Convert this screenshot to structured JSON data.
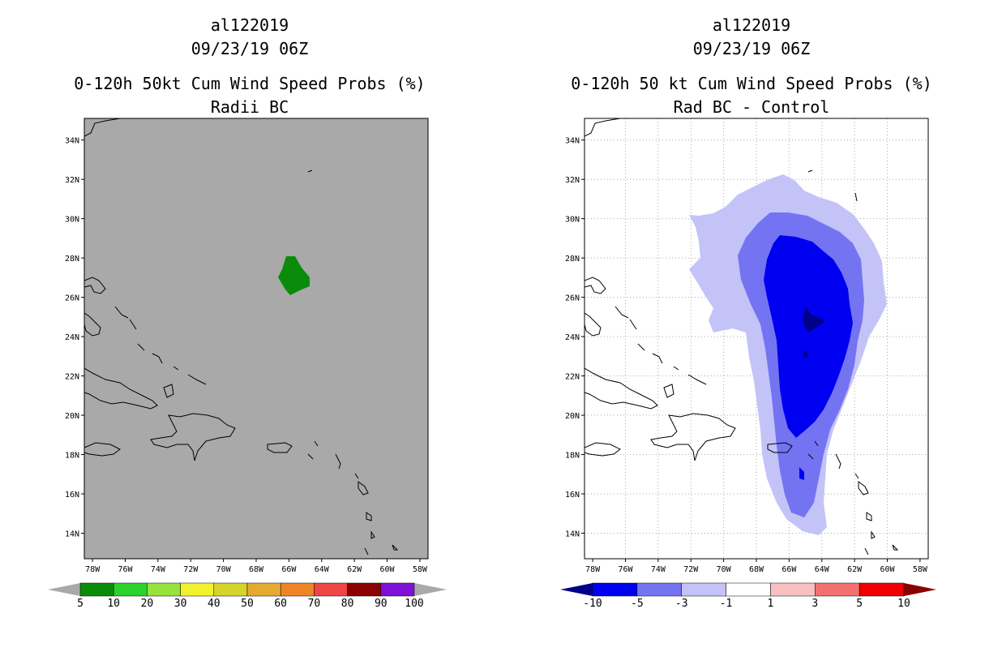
{
  "chart_data": [
    {
      "type": "heatmap",
      "title_lines": [
        "al122019",
        "09/23/19 06Z",
        "0-120h 50kt Cum Wind Speed Probs (%)",
        "Radii BC"
      ],
      "x_ticks": [
        "78W",
        "76W",
        "74W",
        "72W",
        "70W",
        "68W",
        "66W",
        "64W",
        "62W",
        "60W",
        "58W"
      ],
      "y_ticks": [
        "34N",
        "32N",
        "30N",
        "28N",
        "26N",
        "24N",
        "22N",
        "20N",
        "18N",
        "16N",
        "14N"
      ],
      "xlim": [
        -78.5,
        -57.5
      ],
      "ylim": [
        12.7,
        35.1
      ],
      "grid": false,
      "background": "#a9a9a9",
      "colorbar": {
        "labels": [
          "5",
          "10",
          "20",
          "30",
          "40",
          "50",
          "60",
          "70",
          "80",
          "90",
          "100"
        ],
        "colors": [
          "#0a8c0a",
          "#2bd22b",
          "#96e33b",
          "#f2f22c",
          "#d4d42b",
          "#e6aa30",
          "#ef8525",
          "#ef4545",
          "#8c0000",
          "#7f10d6"
        ],
        "ends": [
          "#a9a9a9",
          "#a9a9a9"
        ]
      }
    },
    {
      "type": "heatmap",
      "title_lines": [
        "al122019",
        "09/23/19 06Z",
        "0-120h 50 kt Cum Wind Speed Probs (%)",
        "Rad BC - Control"
      ],
      "x_ticks": [
        "78W",
        "76W",
        "74W",
        "72W",
        "70W",
        "68W",
        "66W",
        "64W",
        "62W",
        "60W",
        "58W"
      ],
      "y_ticks": [
        "34N",
        "32N",
        "30N",
        "28N",
        "26N",
        "24N",
        "22N",
        "20N",
        "18N",
        "16N",
        "14N"
      ],
      "xlim": [
        -78.5,
        -57.5
      ],
      "ylim": [
        12.7,
        35.1
      ],
      "grid": true,
      "background": "#ffffff",
      "colorbar": {
        "labels": [
          "-10",
          "-5",
          "-3",
          "-1",
          "1",
          "3",
          "5",
          "10"
        ],
        "colors": [
          "#0000f0",
          "#7474f2",
          "#c3c3f8",
          "#ffffff",
          "#f8c0c0",
          "#f47070",
          "#f00000"
        ],
        "ends": [
          "#000088",
          "#880000"
        ]
      }
    }
  ]
}
